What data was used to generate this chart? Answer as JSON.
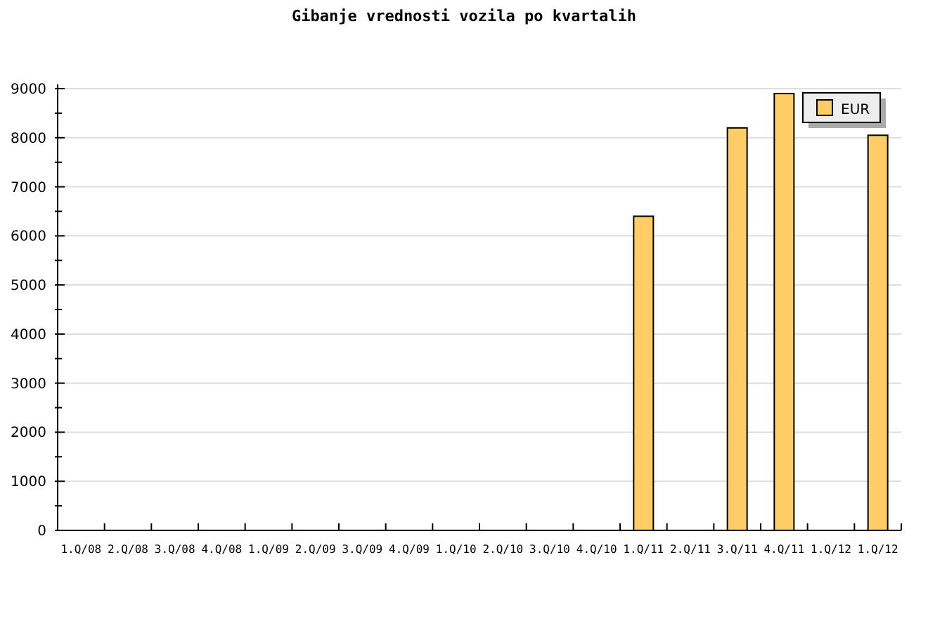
{
  "chart_data": {
    "type": "bar",
    "title": "Gibanje vrednosti vozila po kvartalih",
    "categories": [
      "1.Q/08",
      "2.Q/08",
      "3.Q/08",
      "4.Q/08",
      "1.Q/09",
      "2.Q/09",
      "3.Q/09",
      "4.Q/09",
      "1.Q/10",
      "2.Q/10",
      "3.Q/10",
      "4.Q/10",
      "1.Q/11",
      "2.Q/11",
      "3.Q/11",
      "4.Q/11",
      "1.Q/12",
      "1.Q/12"
    ],
    "series": [
      {
        "name": "EUR",
        "color": "#ffcc66",
        "values": [
          null,
          null,
          null,
          null,
          null,
          null,
          null,
          null,
          null,
          null,
          null,
          null,
          6400,
          null,
          8200,
          8900,
          null,
          8050
        ]
      }
    ],
    "ylim": [
      0,
      9000
    ],
    "yticks": [
      0,
      {
        "value": 500,
        "label": null
      },
      1000,
      {
        "value": 1500,
        "label": null
      },
      2000,
      {
        "value": 2500,
        "label": null
      },
      3000,
      {
        "value": 3500,
        "label": null
      },
      4000,
      {
        "value": 4500,
        "label": null
      },
      5000,
      {
        "value": 5500,
        "label": null
      },
      6000,
      {
        "value": 6500,
        "label": null
      },
      7000,
      {
        "value": 7500,
        "label": null
      },
      8000,
      {
        "value": 8500,
        "label": null
      },
      9000
    ],
    "grid": "y",
    "legend": "top right"
  }
}
